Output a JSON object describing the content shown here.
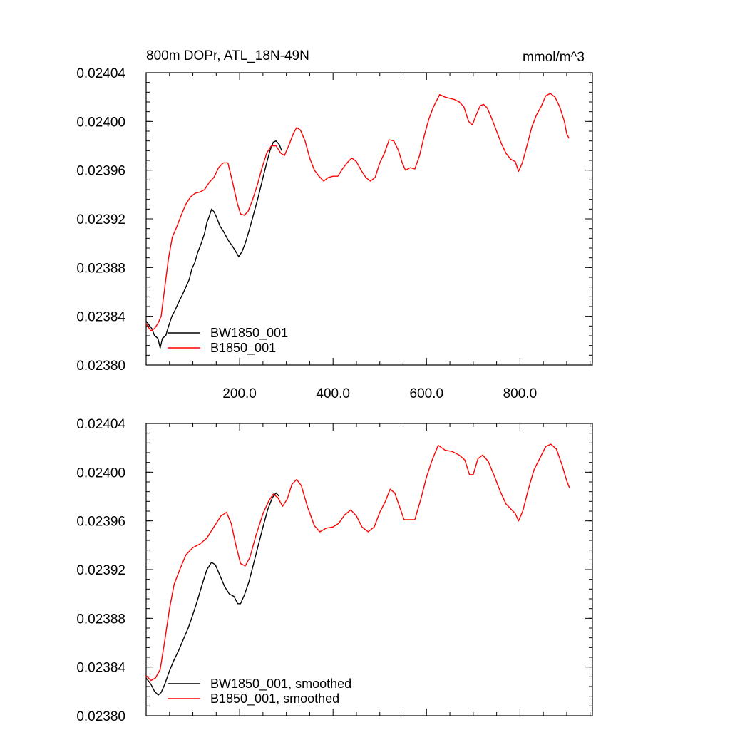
{
  "chart_data": [
    {
      "type": "line",
      "title": "800m DOPr, ATL_18N-49N",
      "units": "mmol/m^3",
      "xlabel": "",
      "ylabel": "",
      "xlim": [
        0,
        955
      ],
      "ylim": [
        0.0238,
        0.02404
      ],
      "x_ticks": [
        "200.0",
        "400.0",
        "600.0",
        "800.0"
      ],
      "y_ticks": [
        "0.02404",
        "0.02400",
        "0.02396",
        "0.02392",
        "0.02388",
        "0.02384",
        "0.02380"
      ],
      "legend_position": "bottom-left",
      "series": [
        {
          "name": "BW1850_001",
          "color": "#000000",
          "points": [
            [
              0,
              0.023836
            ],
            [
              12,
              0.02383
            ],
            [
              18,
              0.023824
            ],
            [
              25,
              0.023822
            ],
            [
              30,
              0.023814
            ],
            [
              35,
              0.023822
            ],
            [
              42,
              0.023824
            ],
            [
              48,
              0.023832
            ],
            [
              55,
              0.02384
            ],
            [
              62,
              0.023845
            ],
            [
              70,
              0.023852
            ],
            [
              78,
              0.023858
            ],
            [
              85,
              0.023864
            ],
            [
              92,
              0.02387
            ],
            [
              98,
              0.023879
            ],
            [
              104,
              0.023884
            ],
            [
              110,
              0.023892
            ],
            [
              118,
              0.0239
            ],
            [
              125,
              0.023908
            ],
            [
              130,
              0.023917
            ],
            [
              135,
              0.023922
            ],
            [
              140,
              0.023928
            ],
            [
              145,
              0.023926
            ],
            [
              150,
              0.023922
            ],
            [
              158,
              0.023914
            ],
            [
              165,
              0.02391
            ],
            [
              172,
              0.023905
            ],
            [
              178,
              0.023901
            ],
            [
              184,
              0.023898
            ],
            [
              192,
              0.023893
            ],
            [
              198,
              0.023889
            ],
            [
              205,
              0.023893
            ],
            [
              212,
              0.0239
            ],
            [
              220,
              0.02391
            ],
            [
              230,
              0.023924
            ],
            [
              240,
              0.023938
            ],
            [
              250,
              0.023954
            ],
            [
              258,
              0.023966
            ],
            [
              265,
              0.023976
            ],
            [
              272,
              0.023983
            ],
            [
              278,
              0.023984
            ],
            [
              285,
              0.023981
            ],
            [
              290,
              0.023976
            ]
          ]
        },
        {
          "name": "B1850_001",
          "color": "#ff0000",
          "points": [
            [
              0,
              0.023834
            ],
            [
              10,
              0.023828
            ],
            [
              18,
              0.02383
            ],
            [
              25,
              0.023834
            ],
            [
              32,
              0.02384
            ],
            [
              40,
              0.023864
            ],
            [
              48,
              0.023888
            ],
            [
              56,
              0.023905
            ],
            [
              65,
              0.023913
            ],
            [
              75,
              0.023923
            ],
            [
              85,
              0.023932
            ],
            [
              95,
              0.023938
            ],
            [
              105,
              0.023941
            ],
            [
              115,
              0.023942
            ],
            [
              125,
              0.023944
            ],
            [
              135,
              0.02395
            ],
            [
              145,
              0.023954
            ],
            [
              155,
              0.023962
            ],
            [
              165,
              0.023966
            ],
            [
              175,
              0.023966
            ],
            [
              185,
              0.02395
            ],
            [
              195,
              0.023933
            ],
            [
              202,
              0.023924
            ],
            [
              210,
              0.023923
            ],
            [
              218,
              0.023926
            ],
            [
              228,
              0.023936
            ],
            [
              238,
              0.023948
            ],
            [
              248,
              0.023962
            ],
            [
              258,
              0.023974
            ],
            [
              268,
              0.02398
            ],
            [
              278,
              0.02398
            ],
            [
              288,
              0.023974
            ],
            [
              296,
              0.023972
            ],
            [
              305,
              0.02398
            ],
            [
              315,
              0.02399
            ],
            [
              322,
              0.023995
            ],
            [
              330,
              0.023993
            ],
            [
              340,
              0.023984
            ],
            [
              350,
              0.02397
            ],
            [
              360,
              0.02396
            ],
            [
              370,
              0.023955
            ],
            [
              380,
              0.023951
            ],
            [
              390,
              0.023954
            ],
            [
              400,
              0.023955
            ],
            [
              410,
              0.023955
            ],
            [
              420,
              0.023961
            ],
            [
              430,
              0.023966
            ],
            [
              440,
              0.02397
            ],
            [
              450,
              0.023967
            ],
            [
              460,
              0.02396
            ],
            [
              470,
              0.023954
            ],
            [
              480,
              0.023951
            ],
            [
              490,
              0.023954
            ],
            [
              500,
              0.023966
            ],
            [
              510,
              0.023974
            ],
            [
              520,
              0.023985
            ],
            [
              530,
              0.023984
            ],
            [
              540,
              0.023976
            ],
            [
              548,
              0.023966
            ],
            [
              555,
              0.02396
            ],
            [
              565,
              0.023962
            ],
            [
              575,
              0.023961
            ],
            [
              585,
              0.023972
            ],
            [
              595,
              0.023988
            ],
            [
              605,
              0.024002
            ],
            [
              615,
              0.024012
            ],
            [
              628,
              0.024022
            ],
            [
              640,
              0.02402
            ],
            [
              650,
              0.024019
            ],
            [
              660,
              0.024018
            ],
            [
              670,
              0.024016
            ],
            [
              680,
              0.024012
            ],
            [
              690,
              0.024
            ],
            [
              698,
              0.023997
            ],
            [
              705,
              0.024004
            ],
            [
              715,
              0.024013
            ],
            [
              722,
              0.024014
            ],
            [
              730,
              0.024011
            ],
            [
              740,
              0.024002
            ],
            [
              750,
              0.023992
            ],
            [
              760,
              0.023982
            ],
            [
              770,
              0.023974
            ],
            [
              780,
              0.023969
            ],
            [
              790,
              0.023967
            ],
            [
              797,
              0.023959
            ],
            [
              805,
              0.023966
            ],
            [
              815,
              0.02398
            ],
            [
              825,
              0.023995
            ],
            [
              835,
              0.024005
            ],
            [
              845,
              0.024012
            ],
            [
              855,
              0.024021
            ],
            [
              865,
              0.024023
            ],
            [
              875,
              0.02402
            ],
            [
              885,
              0.024012
            ],
            [
              895,
              0.024
            ],
            [
              900,
              0.02399
            ],
            [
              905,
              0.023986
            ]
          ]
        }
      ]
    },
    {
      "type": "line",
      "title": "",
      "xlabel": "",
      "ylabel": "",
      "xlim": [
        0,
        955
      ],
      "ylim": [
        0.0238,
        0.02404
      ],
      "x_ticks": [],
      "y_ticks": [
        "0.02404",
        "0.02400",
        "0.02396",
        "0.02392",
        "0.02388",
        "0.02384",
        "0.02380"
      ],
      "legend_position": "bottom-left",
      "series": [
        {
          "name": "BW1850_001, smoothed",
          "color": "#000000",
          "points": [
            [
              0,
              0.023831
            ],
            [
              10,
              0.023826
            ],
            [
              18,
              0.02382
            ],
            [
              26,
              0.023817
            ],
            [
              32,
              0.023819
            ],
            [
              40,
              0.023826
            ],
            [
              50,
              0.023837
            ],
            [
              60,
              0.023846
            ],
            [
              70,
              0.023854
            ],
            [
              80,
              0.023863
            ],
            [
              90,
              0.023872
            ],
            [
              100,
              0.023883
            ],
            [
              110,
              0.023895
            ],
            [
              120,
              0.023908
            ],
            [
              130,
              0.02392
            ],
            [
              140,
              0.023926
            ],
            [
              148,
              0.023924
            ],
            [
              158,
              0.023915
            ],
            [
              168,
              0.023906
            ],
            [
              178,
              0.0239
            ],
            [
              188,
              0.023898
            ],
            [
              196,
              0.023892
            ],
            [
              202,
              0.023892
            ],
            [
              210,
              0.023899
            ],
            [
              220,
              0.02391
            ],
            [
              230,
              0.023925
            ],
            [
              240,
              0.02394
            ],
            [
              250,
              0.023955
            ],
            [
              260,
              0.023969
            ],
            [
              270,
              0.023979
            ],
            [
              278,
              0.023983
            ],
            [
              285,
              0.02398
            ]
          ]
        },
        {
          "name": "B1850_001, smoothed",
          "color": "#ff0000",
          "points": [
            [
              0,
              0.023833
            ],
            [
              10,
              0.023829
            ],
            [
              20,
              0.023831
            ],
            [
              30,
              0.023838
            ],
            [
              40,
              0.023862
            ],
            [
              50,
              0.023888
            ],
            [
              60,
              0.023908
            ],
            [
              72,
              0.02392
            ],
            [
              85,
              0.023932
            ],
            [
              100,
              0.023938
            ],
            [
              115,
              0.023941
            ],
            [
              130,
              0.023946
            ],
            [
              145,
              0.023955
            ],
            [
              160,
              0.023964
            ],
            [
              172,
              0.023967
            ],
            [
              182,
              0.023958
            ],
            [
              192,
              0.02394
            ],
            [
              202,
              0.023925
            ],
            [
              212,
              0.023923
            ],
            [
              222,
              0.02393
            ],
            [
              235,
              0.023948
            ],
            [
              250,
              0.023966
            ],
            [
              262,
              0.023976
            ],
            [
              272,
              0.023982
            ],
            [
              282,
              0.023979
            ],
            [
              292,
              0.023972
            ],
            [
              302,
              0.023978
            ],
            [
              312,
              0.02399
            ],
            [
              322,
              0.023994
            ],
            [
              332,
              0.023989
            ],
            [
              345,
              0.023972
            ],
            [
              360,
              0.023956
            ],
            [
              372,
              0.023951
            ],
            [
              385,
              0.023954
            ],
            [
              400,
              0.023955
            ],
            [
              412,
              0.023958
            ],
            [
              425,
              0.023965
            ],
            [
              438,
              0.023969
            ],
            [
              450,
              0.023964
            ],
            [
              462,
              0.023955
            ],
            [
              475,
              0.023951
            ],
            [
              488,
              0.023955
            ],
            [
              500,
              0.023967
            ],
            [
              512,
              0.023976
            ],
            [
              522,
              0.023986
            ],
            [
              532,
              0.023983
            ],
            [
              542,
              0.023972
            ],
            [
              552,
              0.023961
            ],
            [
              562,
              0.023961
            ],
            [
              575,
              0.023961
            ],
            [
              588,
              0.023978
            ],
            [
              600,
              0.023996
            ],
            [
              612,
              0.02401
            ],
            [
              625,
              0.024022
            ],
            [
              640,
              0.024018
            ],
            [
              655,
              0.024017
            ],
            [
              670,
              0.024014
            ],
            [
              682,
              0.02401
            ],
            [
              692,
              0.023998
            ],
            [
              700,
              0.023998
            ],
            [
              710,
              0.024011
            ],
            [
              720,
              0.024014
            ],
            [
              732,
              0.024009
            ],
            [
              745,
              0.023997
            ],
            [
              758,
              0.023984
            ],
            [
              770,
              0.023974
            ],
            [
              780,
              0.02397
            ],
            [
              790,
              0.023966
            ],
            [
              797,
              0.02396
            ],
            [
              806,
              0.023968
            ],
            [
              818,
              0.023986
            ],
            [
              830,
              0.024002
            ],
            [
              842,
              0.024011
            ],
            [
              855,
              0.024021
            ],
            [
              866,
              0.024023
            ],
            [
              878,
              0.024019
            ],
            [
              890,
              0.024006
            ],
            [
              900,
              0.023993
            ],
            [
              906,
              0.023987
            ]
          ]
        }
      ]
    }
  ]
}
